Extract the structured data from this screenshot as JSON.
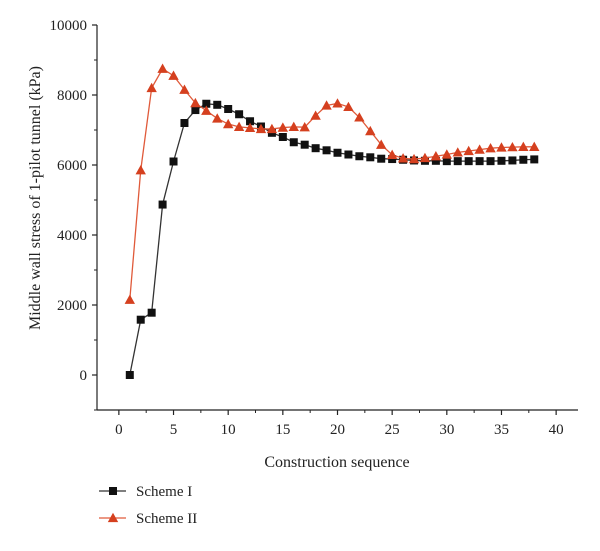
{
  "chart_data": {
    "type": "line",
    "title": "",
    "xlabel": "Construction sequence",
    "ylabel": "Middle wall stress of 1-pilot tunnel (kPa)",
    "xlim": [
      -2,
      42
    ],
    "ylim": [
      -1000,
      10000
    ],
    "x_ticks": [
      0,
      5,
      10,
      15,
      20,
      25,
      30,
      35,
      40
    ],
    "y_ticks": [
      0,
      2000,
      4000,
      6000,
      8000,
      10000
    ],
    "x_tick_labels": [
      "0",
      "5",
      "10",
      "15",
      "20",
      "25",
      "30",
      "35",
      "40"
    ],
    "y_tick_labels": [
      "0",
      "2000",
      "4000",
      "6000",
      "8000",
      "10000"
    ],
    "grid": false,
    "legend_position": "bottom-left",
    "x": [
      1,
      2,
      3,
      4,
      5,
      6,
      7,
      8,
      9,
      10,
      11,
      12,
      13,
      14,
      15,
      16,
      17,
      18,
      19,
      20,
      21,
      22,
      23,
      24,
      25,
      26,
      27,
      28,
      29,
      30,
      31,
      32,
      33,
      34,
      35,
      36,
      37,
      38
    ],
    "series": [
      {
        "name": "Scheme I",
        "marker": "square",
        "color": "#111111",
        "line_color": "#333333",
        "values": [
          0,
          1580,
          1780,
          4870,
          6100,
          7200,
          7570,
          7750,
          7720,
          7600,
          7450,
          7250,
          7100,
          6920,
          6800,
          6650,
          6580,
          6480,
          6420,
          6350,
          6300,
          6250,
          6220,
          6180,
          6170,
          6150,
          6130,
          6120,
          6120,
          6110,
          6110,
          6110,
          6110,
          6110,
          6120,
          6130,
          6150,
          6160
        ]
      },
      {
        "name": "Scheme II",
        "marker": "triangle",
        "color": "#d5401f",
        "line_color": "#e05a3a",
        "values": [
          2150,
          5850,
          8200,
          8750,
          8550,
          8150,
          7770,
          7550,
          7330,
          7170,
          7090,
          7060,
          7030,
          7030,
          7070,
          7090,
          7080,
          7410,
          7700,
          7760,
          7660,
          7360,
          6970,
          6580,
          6290,
          6190,
          6170,
          6200,
          6250,
          6300,
          6360,
          6400,
          6440,
          6480,
          6500,
          6510,
          6520,
          6520
        ]
      }
    ]
  }
}
